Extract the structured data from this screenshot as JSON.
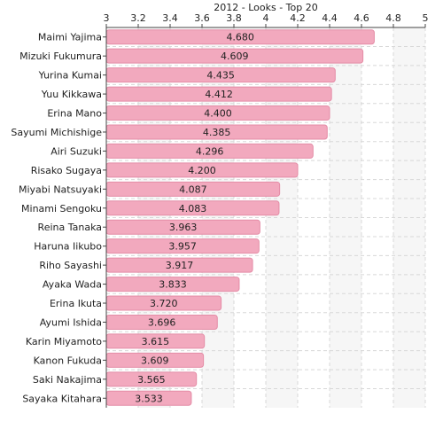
{
  "chart_data": {
    "type": "bar",
    "orientation": "horizontal",
    "title": "2012 - Looks - Top 20",
    "xlabel": "",
    "ylabel": "",
    "xlim": [
      3,
      5
    ],
    "x_ticks": [
      "3",
      "3.2",
      "3.4",
      "3.6",
      "3.8",
      "4",
      "4.2",
      "4.4",
      "4.6",
      "4.8",
      "5"
    ],
    "categories": [
      "Maimi Yajima",
      "Mizuki Fukumura",
      "Yurina Kumai",
      "Yuu Kikkawa",
      "Erina Mano",
      "Sayumi Michishige",
      "Airi Suzuki",
      "Risako Sugaya",
      "Miyabi Natsuyaki",
      "Minami Sengoku",
      "Reina Tanaka",
      "Haruna Iikubo",
      "Riho Sayashi",
      "Ayaka Wada",
      "Erina Ikuta",
      "Ayumi Ishida",
      "Karin Miyamoto",
      "Kanon Fukuda",
      "Saki Nakajima",
      "Sayaka Kitahara"
    ],
    "values": [
      4.68,
      4.609,
      4.435,
      4.412,
      4.4,
      4.385,
      4.296,
      4.2,
      4.087,
      4.083,
      3.963,
      3.957,
      3.917,
      3.833,
      3.72,
      3.696,
      3.615,
      3.609,
      3.565,
      3.533
    ],
    "value_labels": [
      "4.680",
      "4.609",
      "4.435",
      "4.412",
      "4.400",
      "4.385",
      "4.296",
      "4.200",
      "4.087",
      "4.083",
      "3.963",
      "3.957",
      "3.917",
      "3.833",
      "3.720",
      "3.696",
      "3.615",
      "3.609",
      "3.565",
      "3.533"
    ],
    "grid": true,
    "legend": "none",
    "colors": {
      "bar": "#f2a9be",
      "bar_edge": "#e48ca6",
      "grid": "#d8d8d8",
      "band": "#f6f6f6",
      "axis": "#444444",
      "text": "#222222"
    }
  }
}
